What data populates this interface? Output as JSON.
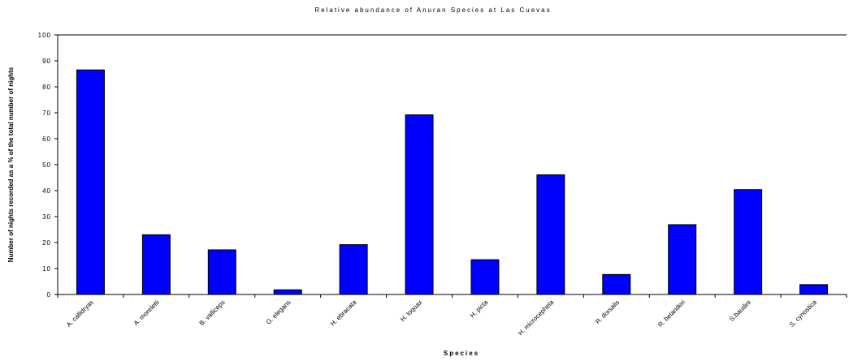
{
  "chart_data": {
    "type": "bar",
    "title": "Relative abundance of Anuran Species at Las Cuevas",
    "xlabel": "Species",
    "ylabel": "Number of nights recorded as a % of the total number of nights",
    "ylim": [
      0,
      100
    ],
    "yticks": [
      "0",
      "10",
      "20",
      "30",
      "40",
      "50",
      "60",
      "70",
      "80",
      "90",
      "100"
    ],
    "grid": false,
    "legend": "none",
    "bar_color": "#0000ff",
    "bar_edge_color": "#000000",
    "categories": [
      "A. callidryas",
      "A. moreletti",
      "B. valliceps",
      "G. elegans",
      "H. ebracata",
      "H. loquax",
      "H. picta",
      "H. microcephela",
      "R. dorsalis",
      "R. belanderi",
      "S.baudini",
      "S. cynostica"
    ],
    "values": [
      86.5,
      23,
      17.2,
      1.8,
      19.2,
      69.2,
      13.4,
      46.1,
      7.7,
      26.9,
      40.4,
      3.8
    ]
  }
}
